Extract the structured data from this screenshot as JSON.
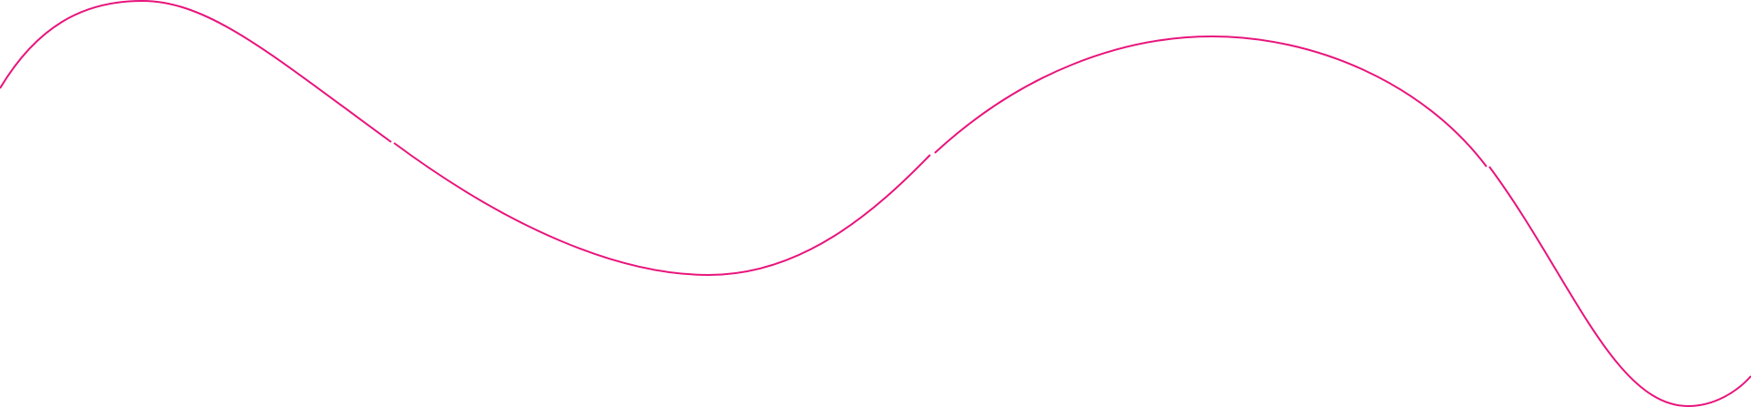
{
  "decoration": {
    "type": "wavy-line",
    "stroke_color": "#E8147C",
    "background_color": "#FFFFFF",
    "segments": 4
  }
}
